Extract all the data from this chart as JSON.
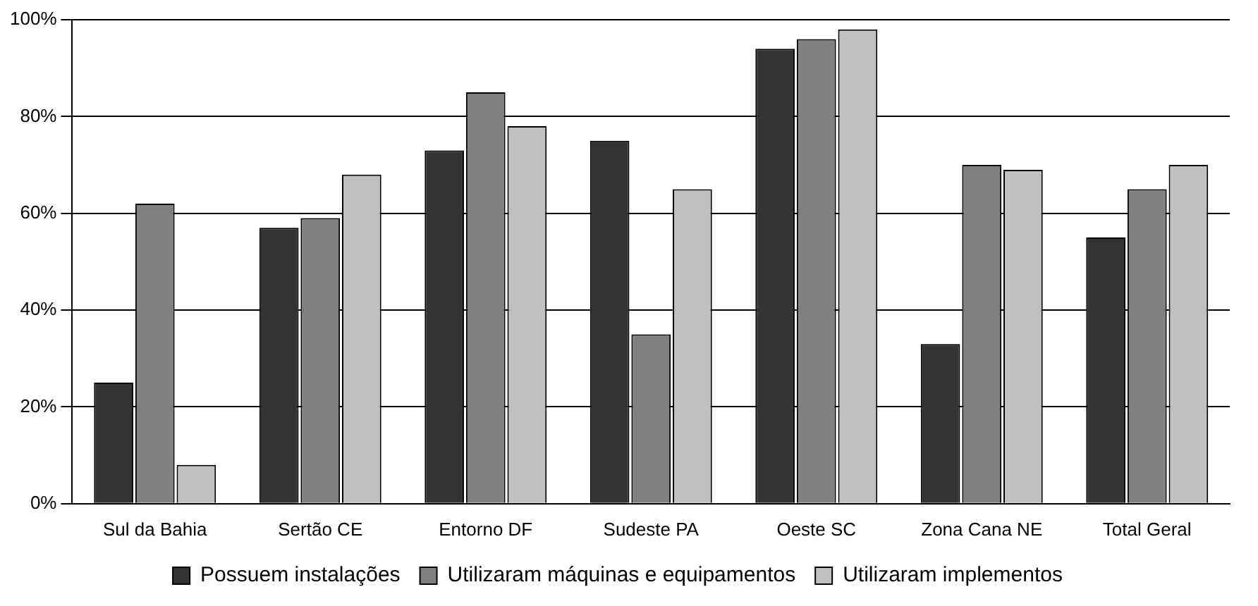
{
  "chart_data": {
    "type": "bar",
    "categories": [
      "Sul da Bahia",
      "Sertão CE",
      "Entorno DF",
      "Sudeste PA",
      "Oeste SC",
      "Zona Cana NE",
      "Total Geral"
    ],
    "series": [
      {
        "name": "Possuem instalações",
        "color": "#333333",
        "values": [
          25,
          57,
          73,
          75,
          94,
          33,
          55
        ]
      },
      {
        "name": "Utilizaram máquinas e equipamentos",
        "color": "#808080",
        "values": [
          62,
          59,
          85,
          35,
          96,
          70,
          65
        ]
      },
      {
        "name": "Utilizaram implementos",
        "color": "#c0c0c0",
        "values": [
          8,
          68,
          78,
          65,
          98,
          69,
          70
        ]
      }
    ],
    "ylim": [
      0,
      100
    ],
    "yticks": [
      {
        "value": 0,
        "label": "0%"
      },
      {
        "value": 20,
        "label": "20%"
      },
      {
        "value": 40,
        "label": "40%"
      },
      {
        "value": 60,
        "label": "60%"
      },
      {
        "value": 80,
        "label": "80%"
      },
      {
        "value": 100,
        "label": "100%"
      }
    ],
    "grid": "y",
    "legend": "bottom"
  }
}
